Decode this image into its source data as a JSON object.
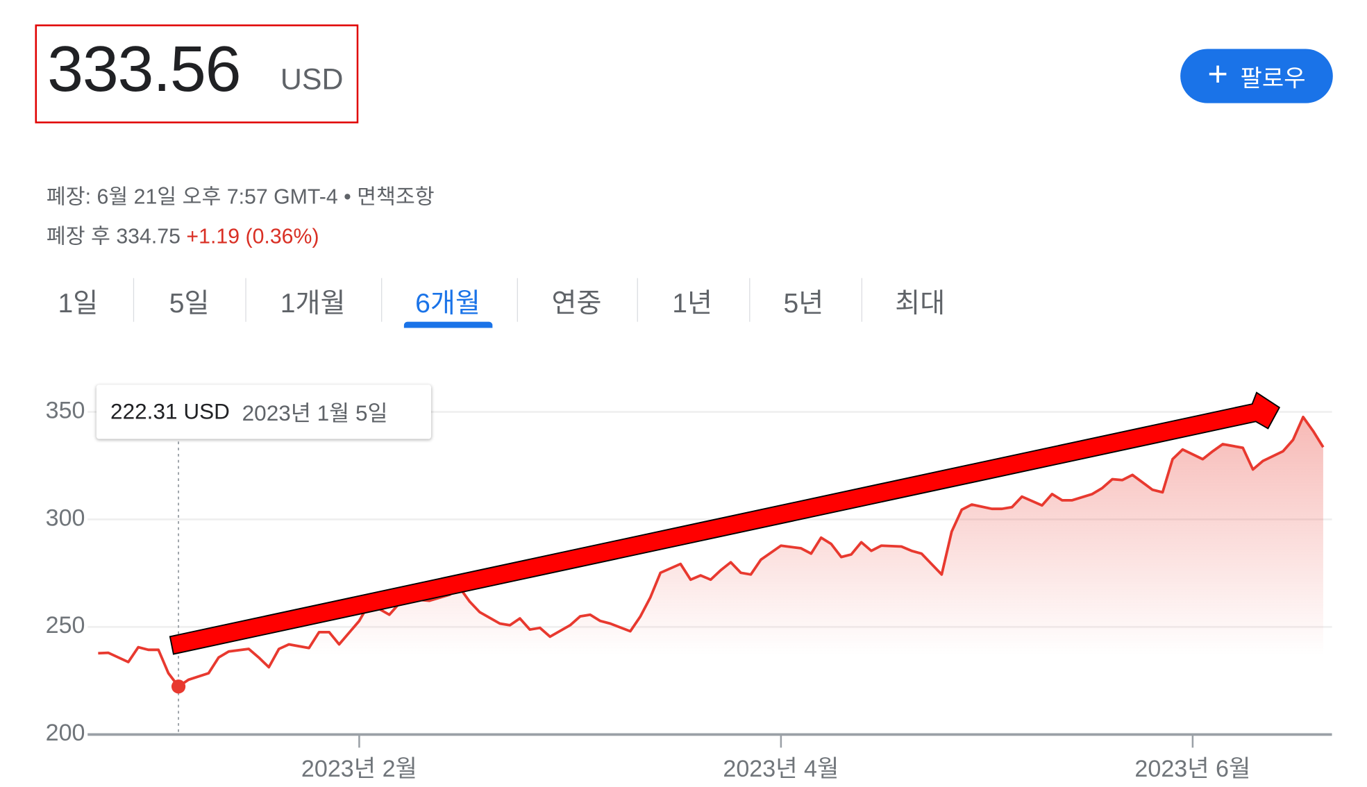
{
  "quote": {
    "price": "333.56",
    "currency": "USD"
  },
  "follow_button": {
    "label": "팔로우",
    "icon": "plus-icon"
  },
  "status": {
    "line1": "폐장: 6월 21일 오후 7:57 GMT-4 • 면책조항",
    "after_hours_label": "폐장 후 334.75",
    "after_hours_change": "+1.19 (0.36%)"
  },
  "tabs": [
    {
      "label": "1일",
      "active": false
    },
    {
      "label": "5일",
      "active": false
    },
    {
      "label": "1개월",
      "active": false
    },
    {
      "label": "6개월",
      "active": true
    },
    {
      "label": "연중",
      "active": false
    },
    {
      "label": "1년",
      "active": false
    },
    {
      "label": "5년",
      "active": false
    },
    {
      "label": "최대",
      "active": false
    }
  ],
  "tooltip": {
    "value": "222.31 USD",
    "date": "2023년 1월 5일"
  },
  "colors": {
    "line": "#e8392f",
    "accent": "#1a73e8",
    "annotation_arrow": "#ff0000",
    "annotation_box": "#e00000"
  },
  "chart_data": {
    "type": "area",
    "x_scale": "trading-days",
    "ylim": [
      200,
      350
    ],
    "y_ticks": [
      "350",
      "300",
      "250",
      "200"
    ],
    "x_ticks": [
      {
        "date": "2023-02-01",
        "label": "2023년 2월"
      },
      {
        "date": "2023-04-03",
        "label": "2023년 4월"
      },
      {
        "date": "2023-06-01",
        "label": "2023년 6월"
      }
    ],
    "grid": true,
    "highlight": {
      "date": "2023-01-05",
      "value": 222.31
    },
    "annotation": "red arrow trending upward from early January to mid June",
    "points": [
      [
        "2022-12-22",
        237.8
      ],
      [
        "2022-12-23",
        238
      ],
      [
        "2022-12-28",
        233.7
      ],
      [
        "2022-12-29",
        240.6
      ],
      [
        "2022-12-30",
        239.4
      ],
      [
        "2023-01-03",
        239.4
      ],
      [
        "2023-01-04",
        228.5
      ],
      [
        "2023-01-05",
        222.31
      ],
      [
        "2023-01-06",
        225.5
      ],
      [
        "2023-01-10",
        228.5
      ],
      [
        "2023-01-11",
        235.8
      ],
      [
        "2023-01-12",
        238.6
      ],
      [
        "2023-01-17",
        239.8
      ],
      [
        "2023-01-18",
        235.8
      ],
      [
        "2023-01-19",
        231.3
      ],
      [
        "2023-01-20",
        239.8
      ],
      [
        "2023-01-23",
        241.9
      ],
      [
        "2023-01-25",
        240.2
      ],
      [
        "2023-01-26",
        247.6
      ],
      [
        "2023-01-27",
        247.6
      ],
      [
        "2023-01-30",
        241.9
      ],
      [
        "2023-02-01",
        252.8
      ],
      [
        "2023-02-02",
        261
      ],
      [
        "2023-02-06",
        255.7
      ],
      [
        "2023-02-07",
        261
      ],
      [
        "2023-02-08",
        263
      ],
      [
        "2023-02-10",
        262.2
      ],
      [
        "2023-02-14",
        265
      ],
      [
        "2023-02-15",
        268.3
      ],
      [
        "2023-02-16",
        261.8
      ],
      [
        "2023-02-17",
        256.9
      ],
      [
        "2023-02-22",
        251.6
      ],
      [
        "2023-02-23",
        250.8
      ],
      [
        "2023-02-24",
        254
      ],
      [
        "2023-02-27",
        248.8
      ],
      [
        "2023-02-28",
        249.6
      ],
      [
        "2023-03-01",
        245.5
      ],
      [
        "2023-03-03",
        250.8
      ],
      [
        "2023-03-06",
        254.9
      ],
      [
        "2023-03-07",
        255.7
      ],
      [
        "2023-03-08",
        252.8
      ],
      [
        "2023-03-09",
        251.6
      ],
      [
        "2023-03-13",
        248
      ],
      [
        "2023-03-14",
        254.9
      ],
      [
        "2023-03-15",
        263.8
      ],
      [
        "2023-03-16",
        275.2
      ],
      [
        "2023-03-20",
        279.3
      ],
      [
        "2023-03-21",
        272
      ],
      [
        "2023-03-22",
        274
      ],
      [
        "2023-03-23",
        272
      ],
      [
        "2023-03-24",
        276.4
      ],
      [
        "2023-03-27",
        280.1
      ],
      [
        "2023-03-28",
        275.2
      ],
      [
        "2023-03-29",
        274.4
      ],
      [
        "2023-03-30",
        281.3
      ],
      [
        "2023-04-03",
        287.8
      ],
      [
        "2023-04-05",
        286.6
      ],
      [
        "2023-04-06",
        284.1
      ],
      [
        "2023-04-10",
        291.5
      ],
      [
        "2023-04-11",
        288.6
      ],
      [
        "2023-04-12",
        282.5
      ],
      [
        "2023-04-13",
        283.7
      ],
      [
        "2023-04-14",
        289.4
      ],
      [
        "2023-04-17",
        285.4
      ],
      [
        "2023-04-18",
        287.8
      ],
      [
        "2023-04-20",
        287.4
      ],
      [
        "2023-04-21",
        285.4
      ],
      [
        "2023-04-24",
        284.1
      ],
      [
        "2023-04-26",
        274.4
      ],
      [
        "2023-04-27",
        294.3
      ],
      [
        "2023-04-28",
        304.5
      ],
      [
        "2023-05-01",
        306.9
      ],
      [
        "2023-05-03",
        304.9
      ],
      [
        "2023-05-04",
        304.9
      ],
      [
        "2023-05-05",
        305.7
      ],
      [
        "2023-05-08",
        310.6
      ],
      [
        "2023-05-10",
        306.5
      ],
      [
        "2023-05-11",
        311.8
      ],
      [
        "2023-05-12",
        308.9
      ],
      [
        "2023-05-15",
        308.9
      ],
      [
        "2023-05-17",
        311.8
      ],
      [
        "2023-05-18",
        314.6
      ],
      [
        "2023-05-19",
        318.7
      ],
      [
        "2023-05-22",
        318.3
      ],
      [
        "2023-05-23",
        320.7
      ],
      [
        "2023-05-25",
        313.8
      ],
      [
        "2023-05-26",
        312.6
      ],
      [
        "2023-05-30",
        328
      ],
      [
        "2023-05-31",
        332.5
      ],
      [
        "2023-06-02",
        328
      ],
      [
        "2023-06-05",
        331.7
      ],
      [
        "2023-06-06",
        335
      ],
      [
        "2023-06-08",
        333.3
      ],
      [
        "2023-06-09",
        323.2
      ],
      [
        "2023-06-12",
        327.2
      ],
      [
        "2023-06-14",
        331.7
      ],
      [
        "2023-06-15",
        337
      ],
      [
        "2023-06-16",
        347.6
      ],
      [
        "2023-06-20",
        341.1
      ],
      [
        "2023-06-21",
        333.56
      ]
    ]
  }
}
